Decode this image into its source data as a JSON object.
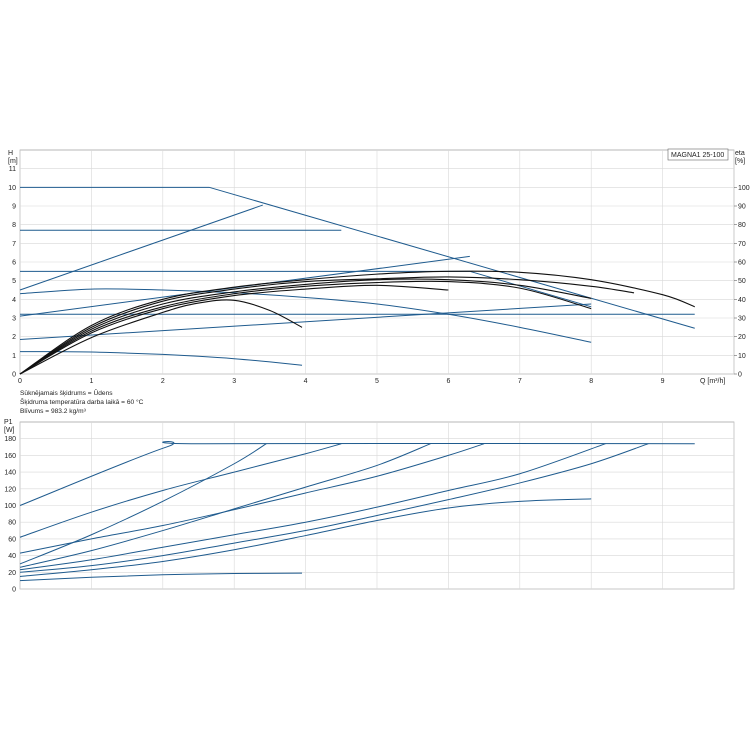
{
  "chart_data": [
    {
      "type": "line",
      "title": "MAGNA1 25-100",
      "xlabel": "Q [m³/h]",
      "ylabel": "H [m]",
      "y2label": "eta [%]",
      "xlim": [
        0,
        10
      ],
      "ylim": [
        0,
        12
      ],
      "y2lim": [
        0,
        120
      ],
      "xticks": [
        "0",
        "1",
        "2",
        "3",
        "4",
        "5",
        "6",
        "7",
        "8",
        "9"
      ],
      "yticks": [
        "0",
        "1",
        "2",
        "3",
        "4",
        "5",
        "6",
        "7",
        "8",
        "9",
        "10",
        "11"
      ],
      "y2ticks": [
        "0",
        "10",
        "20",
        "30",
        "40",
        "50",
        "60",
        "70",
        "80",
        "90",
        "100"
      ],
      "grid": true,
      "series": [
        {
          "color": "#1f5b8e",
          "x": [
            0,
            2.65,
            9.45
          ],
          "y": [
            10,
            10,
            2.45
          ]
        },
        {
          "color": "#1f5b8e",
          "x": [
            0,
            4.5
          ],
          "y": [
            7.7,
            7.7
          ]
        },
        {
          "color": "#1f5b8e",
          "x": [
            0,
            6.3,
            8.0
          ],
          "y": [
            5.5,
            5.5,
            3.6
          ]
        },
        {
          "color": "#1f5b8e",
          "x": [
            0,
            9.45
          ],
          "y": [
            3.2,
            3.2
          ]
        },
        {
          "color": "#1f5b8e",
          "x": [
            0,
            3.4
          ],
          "y": [
            4.5,
            9.05
          ]
        },
        {
          "color": "#1f5b8e",
          "x": [
            0,
            6.3
          ],
          "y": [
            3.1,
            6.3
          ]
        },
        {
          "color": "#1f5b8e",
          "x": [
            0,
            8.0
          ],
          "y": [
            1.85,
            3.75
          ]
        },
        {
          "color": "#1f5b8e",
          "x": [
            0,
            1,
            2,
            3,
            4,
            5,
            6,
            7,
            8
          ],
          "y": [
            4.3,
            4.55,
            4.5,
            4.35,
            4.1,
            3.75,
            3.2,
            2.5,
            1.7
          ]
        },
        {
          "color": "#1f5b8e",
          "x": [
            0,
            0.5,
            1,
            1.5,
            2,
            2.5,
            3,
            3.5,
            3.95
          ],
          "y": [
            1.2,
            1.2,
            1.18,
            1.12,
            1.05,
            0.95,
            0.82,
            0.65,
            0.47
          ]
        },
        {
          "color": "#111111",
          "x": [
            0,
            1,
            2,
            3,
            4,
            5,
            6,
            7,
            8,
            9,
            9.45
          ],
          "y": [
            0,
            2.6,
            4.0,
            4.65,
            5.05,
            5.35,
            5.5,
            5.45,
            5.05,
            4.25,
            3.6
          ]
        },
        {
          "color": "#111111",
          "x": [
            0,
            1,
            2,
            3,
            4,
            5,
            6,
            7,
            8,
            8.6
          ],
          "y": [
            0,
            2.5,
            3.9,
            4.55,
            4.95,
            5.1,
            5.2,
            5.05,
            4.7,
            4.35
          ]
        },
        {
          "color": "#111111",
          "x": [
            0,
            1,
            2,
            3,
            4,
            5,
            6,
            7,
            8
          ],
          "y": [
            0,
            2.4,
            3.75,
            4.4,
            4.8,
            5.05,
            5.05,
            4.75,
            4.05
          ]
        },
        {
          "color": "#111111",
          "x": [
            0,
            1,
            2,
            3,
            4,
            5,
            6,
            7,
            8
          ],
          "y": [
            0,
            2.3,
            3.6,
            4.3,
            4.7,
            4.9,
            4.95,
            4.6,
            3.5
          ]
        },
        {
          "color": "#111111",
          "x": [
            0,
            1,
            2,
            3,
            4,
            5,
            6
          ],
          "y": [
            0,
            2.2,
            3.5,
            4.2,
            4.55,
            4.75,
            4.5
          ]
        },
        {
          "color": "#111111",
          "x": [
            0,
            1,
            2,
            2.5,
            3,
            3.5,
            3.95
          ],
          "y": [
            0,
            1.95,
            3.3,
            3.8,
            3.95,
            3.4,
            2.5
          ]
        }
      ]
    },
    {
      "type": "line",
      "xlabel": "",
      "ylabel": "P1 [W]",
      "xlim": [
        0,
        10
      ],
      "ylim": [
        0,
        200
      ],
      "yticks": [
        "0",
        "20",
        "40",
        "60",
        "80",
        "100",
        "120",
        "140",
        "160",
        "180"
      ],
      "grid": true,
      "series": [
        {
          "color": "#1f5b8e",
          "x": [
            0,
            2.05,
            2.6,
            9.45
          ],
          "y": [
            100,
            170,
            174,
            174
          ]
        },
        {
          "color": "#1f5b8e",
          "x": [
            0,
            1,
            2,
            3,
            3.45
          ],
          "y": [
            30,
            65,
            105,
            150,
            174
          ]
        },
        {
          "color": "#1f5b8e",
          "x": [
            0,
            1,
            2,
            3,
            4,
            4.5
          ],
          "y": [
            62,
            92,
            118,
            140,
            162,
            174
          ]
        },
        {
          "color": "#1f5b8e",
          "x": [
            0,
            1,
            2,
            3,
            4,
            5,
            5.75
          ],
          "y": [
            26,
            46,
            70,
            96,
            122,
            148,
            174
          ]
        },
        {
          "color": "#1f5b8e",
          "x": [
            0,
            1,
            2,
            3,
            4,
            5,
            6,
            6.5
          ],
          "y": [
            43,
            60,
            76,
            95,
            115,
            135,
            160,
            174
          ]
        },
        {
          "color": "#1f5b8e",
          "x": [
            0,
            1,
            2,
            3,
            4,
            5,
            6,
            7,
            8.2
          ],
          "y": [
            23,
            35,
            50,
            65,
            80,
            98,
            118,
            138,
            174
          ]
        },
        {
          "color": "#1f5b8e",
          "x": [
            0,
            1,
            2,
            3,
            4,
            5,
            6,
            7,
            8,
            8.8
          ],
          "y": [
            20,
            28,
            40,
            55,
            70,
            88,
            107,
            127,
            150,
            174
          ]
        },
        {
          "color": "#1f5b8e",
          "x": [
            0,
            1,
            2,
            3,
            4,
            5,
            6,
            7,
            8
          ],
          "y": [
            15,
            23,
            33,
            47,
            64,
            82,
            97,
            105,
            108
          ]
        },
        {
          "color": "#1f5b8e",
          "x": [
            0,
            1,
            2,
            3,
            3.95
          ],
          "y": [
            10,
            14,
            17,
            18.5,
            19
          ]
        }
      ]
    }
  ],
  "info_lines": [
    "Sūknējamais šķidrums = Ūdens",
    "Šķidruma temperatūra darba laikā = 60 °C",
    "Blīvums = 983.2 kg/m³"
  ]
}
